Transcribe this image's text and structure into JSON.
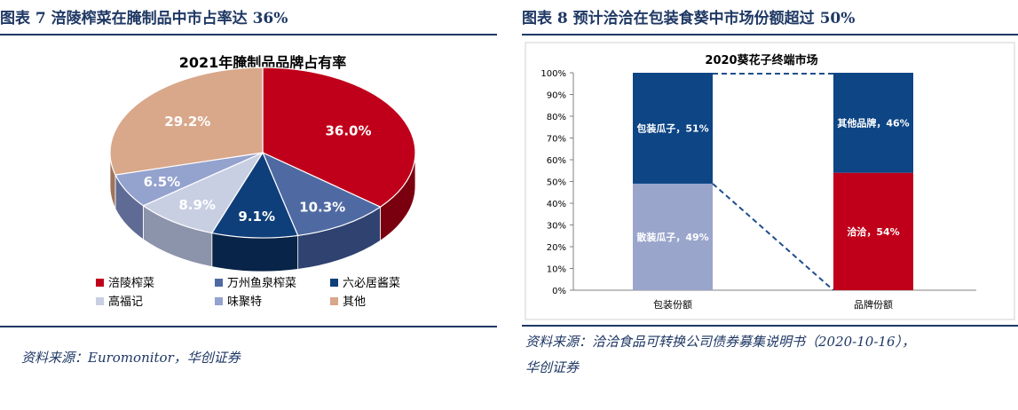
{
  "figures": [
    {
      "heading": "图表 7   涪陵榨菜在腌制品中市占率达 36%",
      "source": "资料来源：Euromonitor，华创证券"
    },
    {
      "heading": "图表 8   预计洽洽在包装食葵中市场份额超过 50%",
      "source_line1": "资料来源：洽洽食品可转换公司债券募集说明书（2020-10-16），",
      "source_line2": "华创证券"
    }
  ],
  "chart_data": [
    {
      "type": "pie",
      "title": "2021年腌制品品牌占有率",
      "slices": [
        {
          "name": "涪陵榨菜",
          "value": 36.0,
          "label": "36.0%",
          "color": "#c0001a",
          "side": "#7a0010"
        },
        {
          "name": "万州鱼泉榨菜",
          "value": 10.3,
          "label": "10.3%",
          "color": "#4f6aa3",
          "side": "#2f4270"
        },
        {
          "name": "六必居酱菜",
          "value": 9.1,
          "label": "9.1%",
          "color": "#0f3f7a",
          "side": "#082448"
        },
        {
          "name": "高福记",
          "value": 8.9,
          "label": "8.9%",
          "color": "#c8cfe2",
          "side": "#8c94ab"
        },
        {
          "name": "味聚特",
          "value": 6.5,
          "label": "6.5%",
          "color": "#94a2ce",
          "side": "#5f6b94"
        },
        {
          "name": "其他",
          "value": 29.2,
          "label": "29.2%",
          "color": "#d9a78a",
          "side": "#a07459"
        }
      ],
      "legend_position": "bottom"
    },
    {
      "type": "bar",
      "stacked": true,
      "title": "2020葵花子终端市场",
      "categories": [
        "包装份额",
        "品牌份额"
      ],
      "series": [
        {
          "bottom": {
            "label": "散装瓜子，49%",
            "value": 49,
            "color": "#9aa5cc"
          },
          "top": {
            "label": "包装瓜子，51%",
            "value": 51,
            "color": "#0d4585"
          }
        },
        {
          "bottom": {
            "label": "洽洽，54%",
            "value": 54,
            "color": "#c0001a"
          },
          "top": {
            "label": "其他品牌，46%",
            "value": 46,
            "color": "#0d4585"
          }
        }
      ],
      "ylim": [
        0,
        100
      ],
      "yticks": [
        "0%",
        "10%",
        "20%",
        "30%",
        "40%",
        "50%",
        "60%",
        "70%",
        "80%",
        "90%",
        "100%"
      ],
      "connector_color": "#1f4e8c"
    }
  ]
}
